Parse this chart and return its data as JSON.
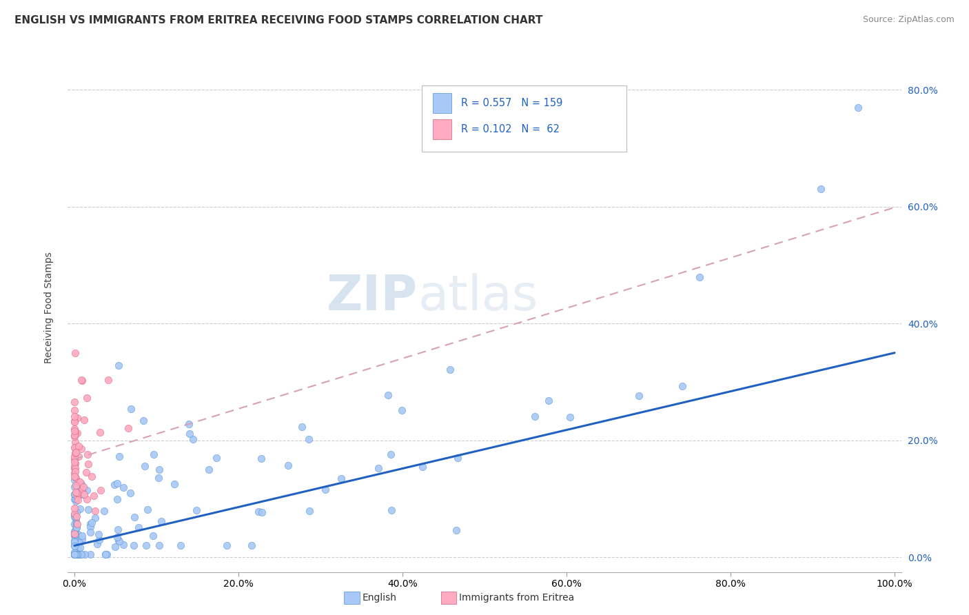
{
  "title": "ENGLISH VS IMMIGRANTS FROM ERITREA RECEIVING FOOD STAMPS CORRELATION CHART",
  "source": "Source: ZipAtlas.com",
  "ylabel": "Receiving Food Stamps",
  "legend_english": "English",
  "legend_eritrea": "Immigrants from Eritrea",
  "R_english": 0.557,
  "N_english": 159,
  "R_eritrea": 0.102,
  "N_eritrea": 62,
  "english_color": "#a8c8f8",
  "english_edge_color": "#5090d0",
  "eritrea_color": "#ffaac0",
  "eritrea_edge_color": "#d06080",
  "english_line_color": "#2060c0",
  "eritrea_line_color": "#d8a0b8",
  "watermark_zip": "ZIP",
  "watermark_atlas": "atlas",
  "title_fontsize": 11,
  "tick_fontsize": 10,
  "source_fontsize": 9
}
